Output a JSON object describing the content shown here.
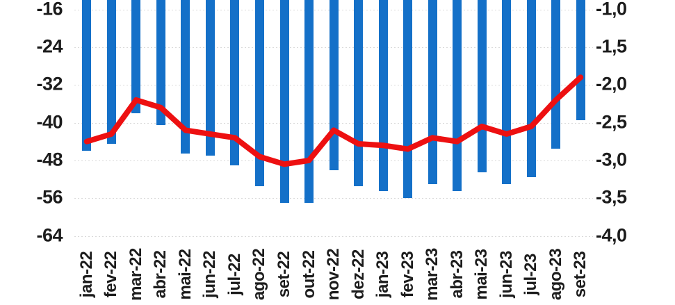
{
  "colors": {
    "bar": "#1470C8",
    "line": "#ED1011",
    "grid": "#D9D9D9",
    "label": "#1C1C1C",
    "background": "#FFFFFF"
  },
  "chart_data": {
    "type": "combo",
    "title": "",
    "legend": {
      "visible": false
    },
    "grid": {
      "visible": true,
      "style": "dotted"
    },
    "cropped_top": true,
    "categories": [
      "jan-22",
      "fev-22",
      "mar-22",
      "abr-22",
      "mai-22",
      "jun-22",
      "jul-22",
      "ago-22",
      "set-22",
      "out-22",
      "nov-22",
      "dez-22",
      "jan-23",
      "fev-23",
      "mar-23",
      "abr-23",
      "mai-23",
      "jun-23",
      "jul-23",
      "ago-23",
      "set-23"
    ],
    "axis_left": {
      "ticks": [
        -16,
        -24,
        -32,
        -40,
        -48,
        -56,
        -64
      ],
      "labels": [
        "-16",
        "-24",
        "-32",
        "-40",
        "-48",
        "-56",
        "-64"
      ],
      "step": 8,
      "ylim_visible": [
        -66,
        -14
      ]
    },
    "axis_right": {
      "ticks": [
        -1.0,
        -1.5,
        -2.0,
        -2.5,
        -3.0,
        -3.5,
        -4.0
      ],
      "labels": [
        "-1,0",
        "-1,5",
        "-2,0",
        "-2,5",
        "-3,0",
        "-3,5",
        "-4,0"
      ],
      "step": 0.5,
      "ylim_visible": [
        -4.1,
        -0.9
      ]
    },
    "series": [
      {
        "id": "bar-series",
        "type": "bar",
        "axis": "left",
        "values": [
          -46,
          -44.5,
          -38,
          -40.5,
          -46.5,
          -47,
          -49,
          -53.5,
          -57,
          -57,
          -50,
          -53.5,
          -54.5,
          -56,
          -53,
          -54.5,
          -50.5,
          -53,
          -51.5,
          -45.5,
          -39.5
        ]
      },
      {
        "id": "line-series",
        "type": "line",
        "axis": "right",
        "values": [
          -2.75,
          -2.65,
          -2.2,
          -2.3,
          -2.6,
          -2.65,
          -2.7,
          -2.95,
          -3.05,
          -3.0,
          -2.6,
          -2.78,
          -2.8,
          -2.85,
          -2.7,
          -2.75,
          -2.55,
          -2.65,
          -2.55,
          -2.2,
          -1.9
        ]
      }
    ]
  }
}
